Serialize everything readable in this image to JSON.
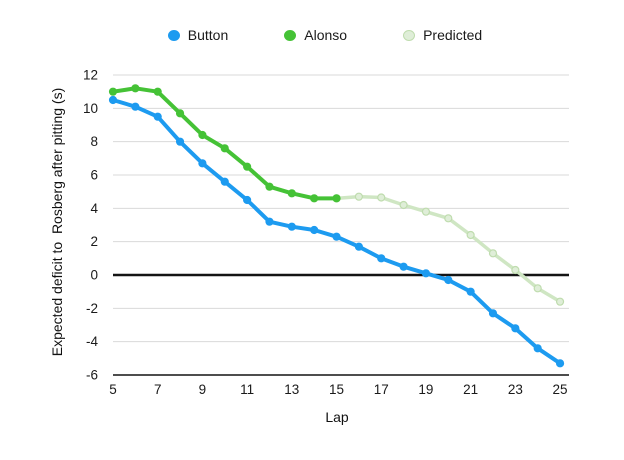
{
  "chart_data": {
    "type": "line",
    "title": "",
    "xlabel": "Lap",
    "ylabel": "Expected deficit to  Rosberg after pitting (s)",
    "xlim": [
      5,
      25.4
    ],
    "ylim": [
      -6,
      12
    ],
    "xticks": [
      5,
      7,
      9,
      11,
      13,
      15,
      17,
      19,
      21,
      23,
      25
    ],
    "yticks": [
      -6,
      -4,
      -2,
      0,
      2,
      4,
      6,
      8,
      10,
      12
    ],
    "grid": "horizontal",
    "zero_line": true,
    "legend_position": "top",
    "series": [
      {
        "name": "Button",
        "color": "#1d9bf0",
        "marker_fill": "#1d9bf0",
        "marker_stroke": "#1d9bf0",
        "line_width": 4,
        "x": [
          5,
          6,
          7,
          8,
          9,
          10,
          11,
          12,
          13,
          14,
          15,
          16,
          17,
          18,
          19,
          20,
          21,
          22,
          23,
          24,
          25
        ],
        "values": [
          10.5,
          10.1,
          9.5,
          8.0,
          6.7,
          5.6,
          4.5,
          3.2,
          2.9,
          2.7,
          2.3,
          1.7,
          1.0,
          0.5,
          0.1,
          -0.3,
          -1.0,
          -2.3,
          -3.2,
          -4.4,
          -5.3
        ]
      },
      {
        "name": "Alonso",
        "color": "#45c236",
        "marker_fill": "#45c236",
        "marker_stroke": "#45c236",
        "line_width": 4,
        "x": [
          5,
          6,
          7,
          8,
          9,
          10,
          11,
          12,
          13,
          14,
          15
        ],
        "values": [
          11.0,
          11.2,
          11.0,
          9.7,
          8.4,
          7.6,
          6.5,
          5.3,
          4.9,
          4.6,
          4.6
        ]
      },
      {
        "name": "Predicted",
        "color": "#cfe6c3",
        "marker_fill": "#dfeed8",
        "marker_stroke": "#bfdcae",
        "line_width": 3.5,
        "x": [
          15,
          16,
          17,
          18,
          19,
          20,
          21,
          22,
          23,
          24,
          25
        ],
        "values": [
          4.6,
          4.7,
          4.65,
          4.2,
          3.8,
          3.4,
          2.4,
          1.3,
          0.3,
          -0.8,
          -1.6
        ]
      }
    ],
    "colors": {
      "gridline": "#dadada",
      "zero_line": "#141414",
      "axis_line": "#4d4d4d",
      "tick_text": "#1a1a1a"
    }
  }
}
